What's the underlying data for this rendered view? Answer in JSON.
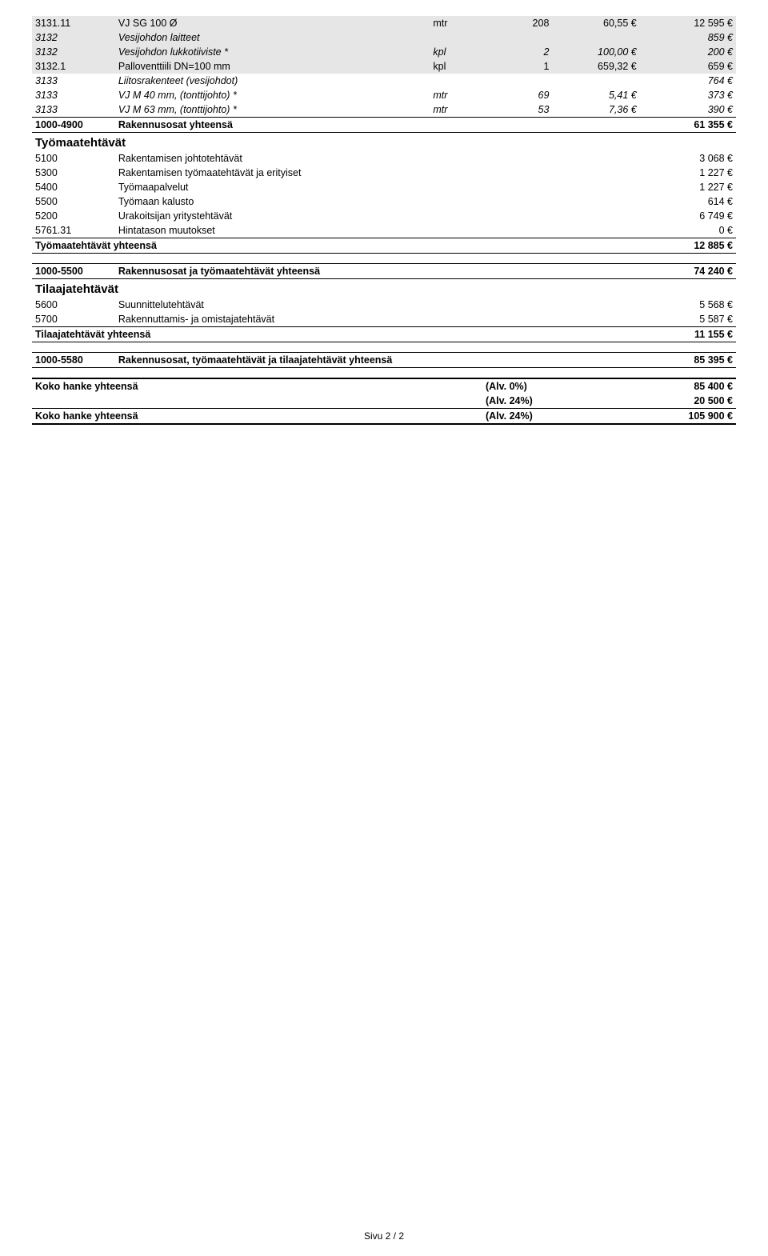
{
  "rows": [
    {
      "cls": "shaded",
      "code": "3131.11",
      "desc": "VJ SG 100 Ø",
      "unit": "mtr",
      "qty": "208",
      "price": "60,55 €",
      "total": "12 595 €"
    },
    {
      "cls": "shaded italic",
      "code": "3132",
      "desc": "Vesijohdon laitteet",
      "unit": "",
      "qty": "",
      "price": "",
      "total": "859 €"
    },
    {
      "cls": "shaded italic",
      "code": "3132",
      "desc": "Vesijohdon lukkotiiviste *",
      "unit": "kpl",
      "qty": "2",
      "price": "100,00 €",
      "total": "200 €"
    },
    {
      "cls": "shaded",
      "code": "3132.1",
      "desc": "Palloventtiili DN=100 mm",
      "unit": "kpl",
      "qty": "1",
      "price": "659,32 €",
      "total": "659 €"
    },
    {
      "cls": "italic",
      "code": "3133",
      "desc": "Liitosrakenteet (vesijohdot)",
      "unit": "",
      "qty": "",
      "price": "",
      "total": "764 €"
    },
    {
      "cls": "italic",
      "code": "3133",
      "desc": "VJ M 40 mm, (tonttijohto) *",
      "unit": "mtr",
      "qty": "69",
      "price": "5,41 €",
      "total": "373 €"
    },
    {
      "cls": "italic",
      "code": "3133",
      "desc": "VJ M 63 mm, (tonttijohto) *",
      "unit": "mtr",
      "qty": "53",
      "price": "7,36 €",
      "total": "390 €"
    }
  ],
  "rakennusosat": {
    "code": "1000-4900",
    "label": "Rakennusosat yhteensä",
    "total": "61 355 €"
  },
  "tyomaatehtavat_head": "Työmaatehtävät",
  "tyo_rows": [
    {
      "code": "5100",
      "desc": "Rakentamisen johtotehtävät",
      "total": "3 068 €"
    },
    {
      "code": "5300",
      "desc": "Rakentamisen työmaatehtävät ja erityiset",
      "total": "1 227 €"
    },
    {
      "code": "5400",
      "desc": "Työmaapalvelut",
      "total": "1 227 €"
    },
    {
      "code": "5500",
      "desc": "Työmaan kalusto",
      "total": "614 €"
    },
    {
      "code": "5200",
      "desc": "Urakoitsijan yritystehtävät",
      "total": "6 749 €"
    },
    {
      "code": "5761.31",
      "desc": "Hintatason muutokset",
      "total": "0 €"
    }
  ],
  "tyo_sum": {
    "label": "Työmaatehtävät yhteensä",
    "total": "12 885 €"
  },
  "rak_tyo": {
    "code": "1000-5500",
    "label": "Rakennusosat ja työmaatehtävät yhteensä",
    "total": "74 240 €"
  },
  "tilaaja_head": "Tilaajatehtävät",
  "tilaaja_rows": [
    {
      "code": "5600",
      "desc": "Suunnittelutehtävät",
      "total": "5 568 €"
    },
    {
      "code": "5700",
      "desc": "Rakennuttamis- ja omistajatehtävät",
      "total": "5 587 €"
    }
  ],
  "tilaaja_sum": {
    "label": "Tilaajatehtävät yhteensä",
    "total": "11 155 €"
  },
  "all_sum": {
    "code": "1000-5580",
    "label": "Rakennusosat, työmaatehtävät ja tilaajatehtävät yhteensä",
    "total": "85 395 €"
  },
  "hanke0": {
    "label": "Koko hanke yhteensä",
    "alv": "(Alv. 0%)",
    "total": "85 400 €"
  },
  "alv24": {
    "label": "",
    "alv": "(Alv. 24%)",
    "total": "20 500 €"
  },
  "hanke24": {
    "label": "Koko hanke yhteensä",
    "alv": "(Alv. 24%)",
    "total": "105 900 €"
  },
  "footer": "Sivu 2 / 2"
}
